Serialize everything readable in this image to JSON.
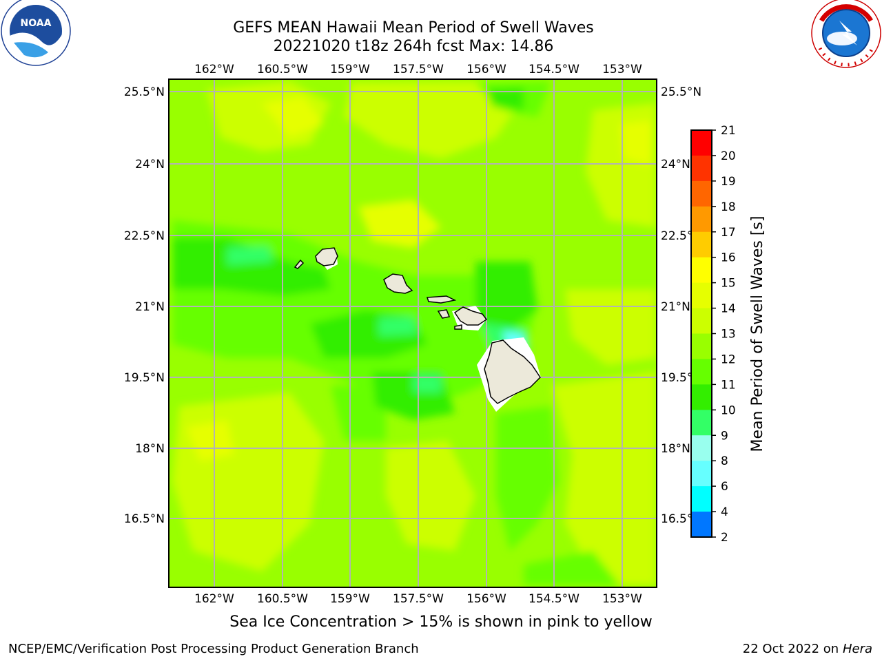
{
  "header": {
    "title_line1": "GEFS MEAN Hawaii Mean Period of Swell Waves",
    "title_line2": "20221020 t18z 264h fcst   Max: 14.86"
  },
  "logos": {
    "left": {
      "icon": "noaa-logo",
      "text": "NOAA"
    },
    "right": {
      "icon": "nws-logo",
      "text": "NATIONAL WEATHER SERVICE"
    }
  },
  "map": {
    "lon_ticks": [
      "162°W",
      "160.5°W",
      "159°W",
      "157.5°W",
      "156°W",
      "154.5°W",
      "153°W"
    ],
    "lat_ticks": [
      "25.5°N",
      "24°N",
      "22.5°N",
      "21°N",
      "19.5°N",
      "18°N",
      "16.5°N"
    ],
    "colors": {
      "land": "#ece9da",
      "coast": "#000000",
      "grid": "#b3b3b3"
    }
  },
  "colorbar": {
    "label": "Mean Period of Swell Waves [s]",
    "ticks": [
      "21",
      "20",
      "19",
      "18",
      "17",
      "16",
      "15",
      "14",
      "13",
      "12",
      "11",
      "10",
      "9",
      "8",
      "6",
      "4",
      "2"
    ],
    "colors": [
      "#ff0000",
      "#ff3300",
      "#ff6600",
      "#ff9900",
      "#ffcc00",
      "#ffff00",
      "#e6ff00",
      "#ccff00",
      "#99ff00",
      "#66ff00",
      "#33ee00",
      "#33ff66",
      "#99ffee",
      "#66ffff",
      "#00ffff",
      "#0077ff",
      "#0000ff"
    ]
  },
  "notes": {
    "sea_ice": "Sea Ice Concentration > 15% is shown in pink to yellow"
  },
  "footer": {
    "left": "NCEP/EMC/Verification Post Processing Product Generation Branch",
    "right_prefix": "22 Oct 2022 on ",
    "right_host": "Hera"
  }
}
